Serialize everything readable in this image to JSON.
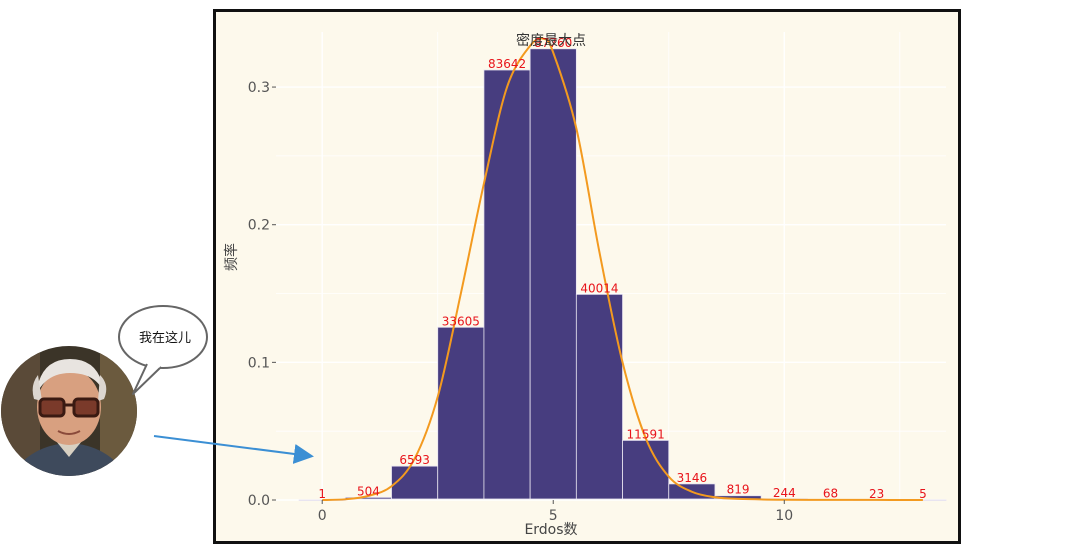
{
  "chart_data": {
    "type": "bar",
    "title": "密度最大点",
    "xlabel": "Erdos数",
    "ylabel": "频率",
    "x": [
      0,
      1,
      2,
      3,
      4,
      5,
      6,
      7,
      8,
      9,
      10,
      11,
      12,
      13
    ],
    "counts": [
      1,
      504,
      6593,
      33605,
      83642,
      87760,
      40014,
      11591,
      3146,
      819,
      244,
      68,
      23,
      5
    ],
    "count_labels": [
      "1",
      "504",
      "6593",
      "33605",
      "83642",
      "87760",
      "40014",
      "11591",
      "3146",
      "819",
      "244",
      "68",
      "23",
      "5"
    ],
    "values": [
      4e-06,
      0.0019,
      0.0246,
      0.1255,
      0.3124,
      0.3278,
      0.1494,
      0.0433,
      0.0117,
      0.0031,
      0.0009,
      0.0003,
      0.0001,
      2e-05
    ],
    "density_curve": {
      "x": [
        0,
        0.5,
        1,
        1.5,
        2,
        2.5,
        3,
        3.5,
        4,
        4.5,
        4.8,
        5,
        5.5,
        6,
        6.5,
        7,
        7.5,
        8,
        8.5,
        9,
        10,
        11,
        12,
        13
      ],
      "y": [
        0,
        0.0005,
        0.003,
        0.01,
        0.03,
        0.075,
        0.15,
        0.23,
        0.3,
        0.33,
        0.335,
        0.325,
        0.27,
        0.18,
        0.1,
        0.045,
        0.017,
        0.006,
        0.002,
        0.0008,
        0.0002,
        0.0001,
        5e-05,
        0
      ]
    },
    "xlim": [
      -1,
      13.5
    ],
    "ylim": [
      0,
      0.34
    ],
    "x_ticks": [
      0,
      5,
      10
    ],
    "x_tick_labels": [
      "0",
      "5",
      "10"
    ],
    "y_ticks": [
      0,
      0.1,
      0.2,
      0.3
    ],
    "y_tick_labels": [
      "0.0",
      "0.1",
      "0.2",
      "0.3"
    ],
    "grid": true,
    "colors": {
      "bar": "#473d7f",
      "bar_edge": "#e8e4f0",
      "curve": "#f39a1f",
      "count_label": "#e8141b",
      "panel_bg": "#fdf9ec",
      "grid": "#ffffff",
      "axis_text": "#555555"
    }
  },
  "annotation": {
    "bubble_text": "我在这儿"
  }
}
